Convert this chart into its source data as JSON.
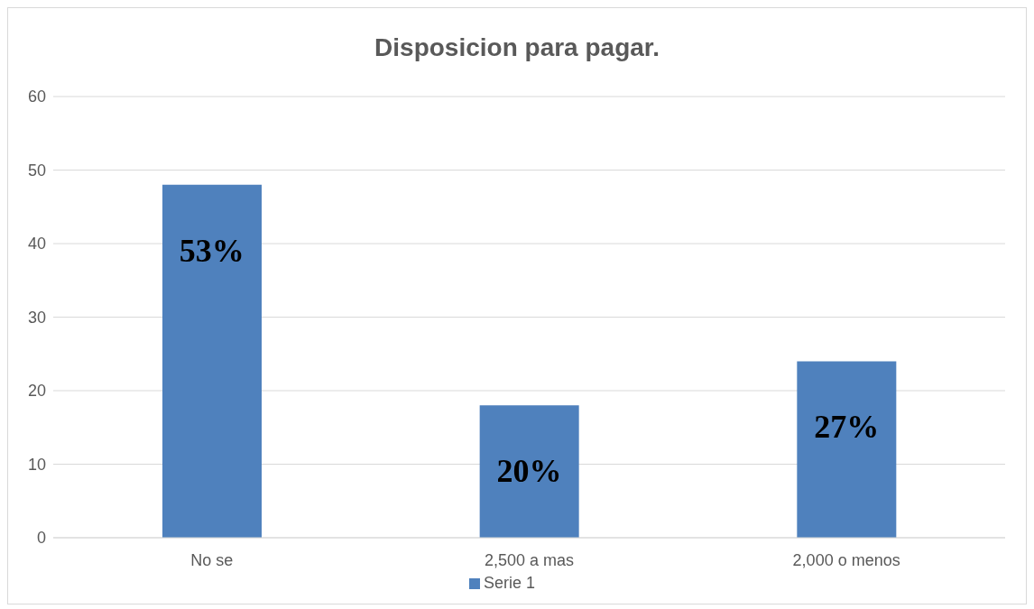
{
  "chart_data": {
    "type": "bar",
    "title": "Disposicion para pagar.",
    "categories": [
      "No se",
      "2,500 a mas",
      "2,000 o menos"
    ],
    "series": [
      {
        "name": "Serie 1",
        "color": "#4f81bd",
        "values": [
          48,
          18,
          24
        ]
      }
    ],
    "annotations": [
      {
        "text": "53%",
        "x": "No se",
        "y": 48
      },
      {
        "text": "20%",
        "x": "2,500 a mas",
        "y": 18
      },
      {
        "text": "27%",
        "x": "2,000 o menos",
        "y": 24
      }
    ],
    "ylim": [
      0,
      60
    ],
    "yticks": [
      0,
      10,
      20,
      30,
      40,
      50,
      60
    ],
    "grid": "y",
    "legend": "bottom"
  }
}
